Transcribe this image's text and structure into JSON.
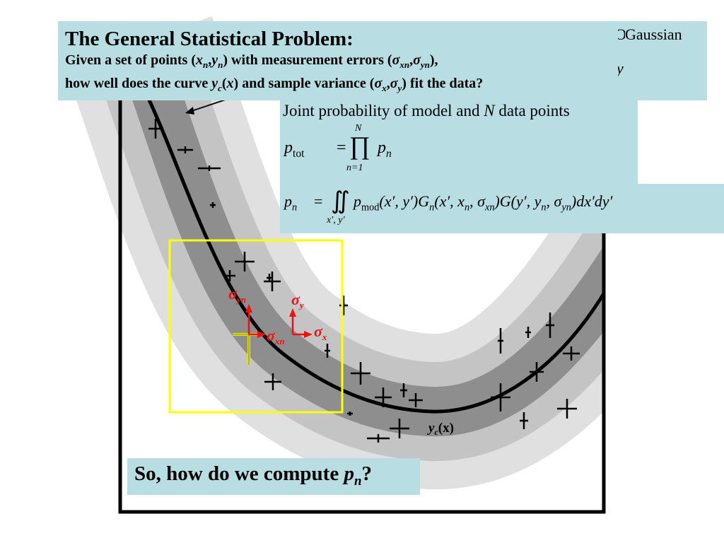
{
  "title": {
    "heading": "The General Statistical Problem:",
    "line1_a": "Given a set of points (",
    "line1_x": "x",
    "line1_n1": "n",
    "line1_comma": ",",
    "line1_y": "y",
    "line1_n2": "n",
    "line1_b": ") with measurement errors (",
    "line1_sig1": "σ",
    "line1_sub1": "xn",
    "line1_comma2": ",",
    "line1_sig2": "σ",
    "line1_sub2": "yn",
    "line1_c": "),",
    "line2_a": "how well does the curve ",
    "line2_y": "y",
    "line2_c": "c",
    "line2_b": "(",
    "line2_x": "x",
    "line2_d": ") and sample variance (",
    "line2_sig1": "σ",
    "line2_sub1": "x",
    "line2_comma": ",",
    "line2_sig2": "σ",
    "line2_sub2": "y",
    "line2_e": ") fit the data?"
  },
  "background_box": {
    "gaussian_text": "Gaussian",
    "y_text": "y"
  },
  "joint": {
    "line_a": "Joint probability of  model and ",
    "line_N": "N",
    "line_b": " data points",
    "p": "p",
    "p_sub": "tot",
    "eq": "=",
    "prod": "∏",
    "prod_top": "N",
    "prod_bottom": "n=1",
    "pn": "p",
    "pn_sub": "n"
  },
  "pn_formula": {
    "p": "p",
    "p_sub": "n",
    "eq": "=",
    "integral": "∬",
    "int_sub": "x′, y′",
    "body": "p",
    "body_sub": "mod",
    "rest": "(x′, y′)G",
    "g_sub": "n",
    "rest2": "(x′, x",
    "x_sub": "n",
    "rest3": ", σ",
    "sig_sub": "xn",
    "rest4": ")G(y′, y",
    "y_sub": "n",
    "rest5": ", σ",
    "sig2_sub": "yn",
    "rest6": ")dx′dy′"
  },
  "diagram": {
    "curve_label_y": "y",
    "curve_label_c": "c",
    "curve_label_rest": "(x)",
    "sigma_yn": "σ",
    "sigma_yn_sub": "yn",
    "sigma_y": "σ",
    "sigma_y_sub": "y",
    "sigma_xn": "σ",
    "sigma_xn_sub": "xn",
    "sigma_x": "σ",
    "sigma_x_sub": "x",
    "colors": {
      "band_outer": "#e0e0e0",
      "band_middle": "#c4c4c4",
      "band_inner": "#8e8e8e",
      "curve": "#000000",
      "highlight_box": "#ffff00",
      "arrow_red": "#ee1111",
      "error_bar_yellow": "#e6e600"
    }
  },
  "question": {
    "text": "So, how do we compute ",
    "p": "p",
    "sub": "n",
    "q": "?"
  }
}
